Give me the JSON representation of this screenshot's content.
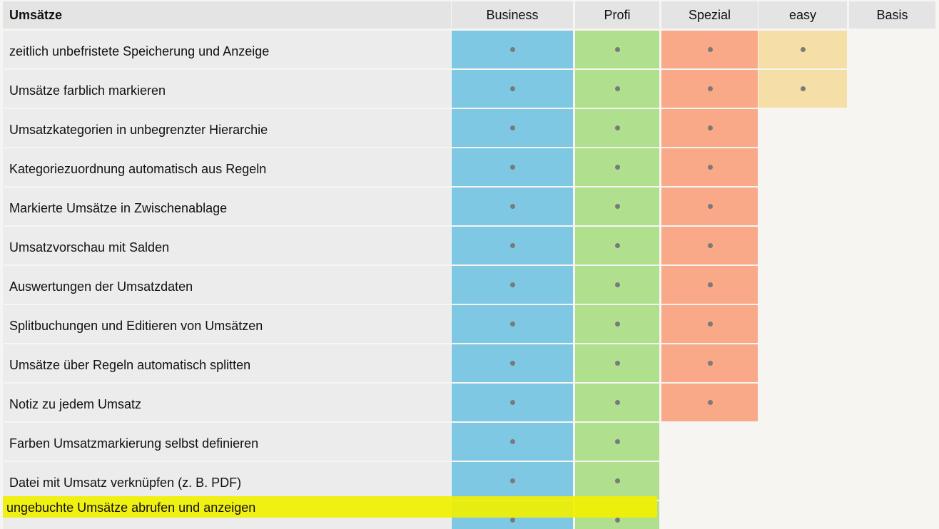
{
  "table": {
    "section_title": "Umsätze",
    "columns": [
      {
        "name": "Business",
        "color": "#7fc8e4"
      },
      {
        "name": "Profi",
        "color": "#b0df8e"
      },
      {
        "name": "Spezial",
        "color": "#f9a888"
      },
      {
        "name": "easy",
        "color": "#f5dfa6"
      },
      {
        "name": "Basis",
        "color": "#e4e4e4"
      }
    ],
    "rows": [
      {
        "label": "zeitlich unbefristete Speicherung und Anzeige",
        "features": [
          true,
          true,
          true,
          true,
          false
        ]
      },
      {
        "label": "Umsätze farblich markieren",
        "features": [
          true,
          true,
          true,
          true,
          false
        ]
      },
      {
        "label": "Umsatzkategorien in unbegrenzter Hierarchie",
        "features": [
          true,
          true,
          true,
          false,
          false
        ]
      },
      {
        "label": "Kategoriezuordnung automatisch aus Regeln",
        "features": [
          true,
          true,
          true,
          false,
          false
        ]
      },
      {
        "label": "Markierte Umsätze in Zwischenablage",
        "features": [
          true,
          true,
          true,
          false,
          false
        ]
      },
      {
        "label": "Umsatzvorschau mit Salden",
        "features": [
          true,
          true,
          true,
          false,
          false
        ]
      },
      {
        "label": "Auswertungen der Umsatzdaten",
        "features": [
          true,
          true,
          true,
          false,
          false
        ]
      },
      {
        "label": "Splitbuchungen und Editieren von Umsätzen",
        "features": [
          true,
          true,
          true,
          false,
          false
        ]
      },
      {
        "label": "Umsätze über Regeln automatisch splitten",
        "features": [
          true,
          true,
          true,
          false,
          false
        ]
      },
      {
        "label": "Notiz zu jedem Umsatz",
        "features": [
          true,
          true,
          true,
          false,
          false
        ]
      },
      {
        "label": "Farben Umsatzmarkierung selbst definieren",
        "features": [
          true,
          true,
          false,
          false,
          false
        ]
      },
      {
        "label": "Datei mit Umsatz verknüpfen (z. B. PDF)",
        "features": [
          true,
          true,
          false,
          false,
          false
        ]
      }
    ],
    "highlighted_row": {
      "label": "ungebuchte Umsätze abrufen und anzeigen",
      "features": [
        true,
        true,
        false,
        false,
        false
      ],
      "highlight_color": "#f0f000"
    }
  }
}
